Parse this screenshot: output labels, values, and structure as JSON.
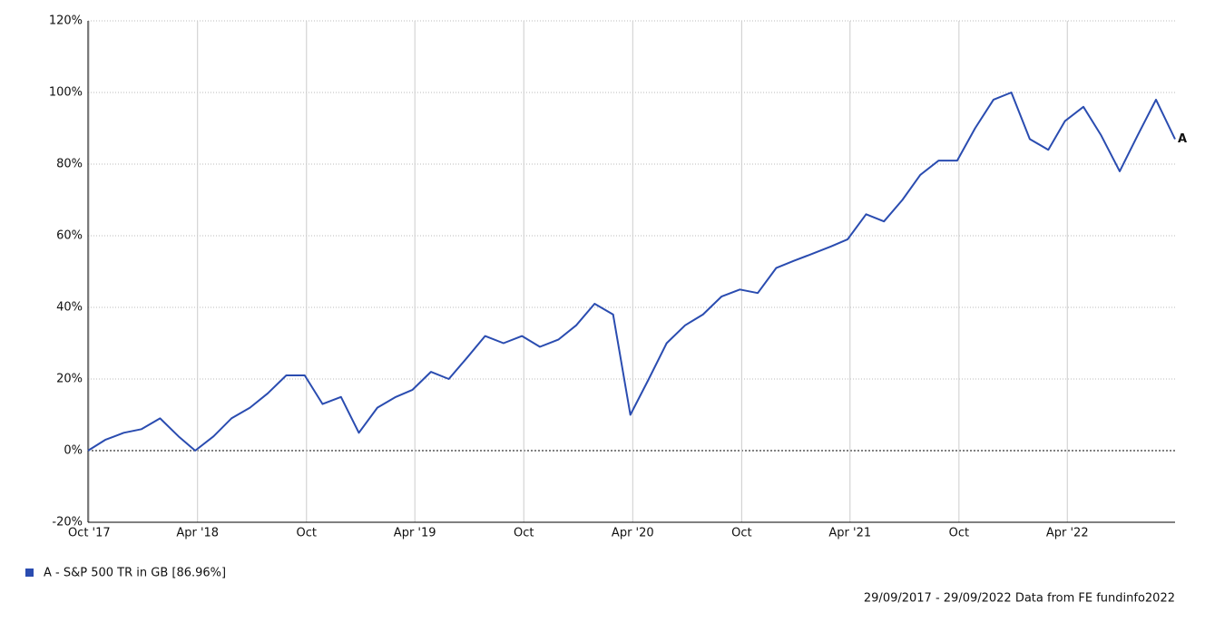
{
  "chart_data": {
    "type": "line",
    "x": [
      "2017-09-29",
      "2017-10-28",
      "2017-11-28",
      "2017-12-28",
      "2018-01-28",
      "2018-02-28",
      "2018-03-28",
      "2018-04-28",
      "2018-05-28",
      "2018-06-28",
      "2018-07-28",
      "2018-08-28",
      "2018-09-28",
      "2018-10-28",
      "2018-11-28",
      "2018-12-28",
      "2019-01-28",
      "2019-02-28",
      "2019-03-28",
      "2019-04-28",
      "2019-05-28",
      "2019-06-28",
      "2019-07-28",
      "2019-08-28",
      "2019-09-28",
      "2019-10-28",
      "2019-11-28",
      "2019-12-28",
      "2020-01-28",
      "2020-02-28",
      "2020-03-28",
      "2020-04-28",
      "2020-05-28",
      "2020-06-28",
      "2020-07-28",
      "2020-08-28",
      "2020-09-28",
      "2020-10-28",
      "2020-11-28",
      "2020-12-28",
      "2021-01-28",
      "2021-02-28",
      "2021-03-28",
      "2021-04-28",
      "2021-05-28",
      "2021-06-28",
      "2021-07-28",
      "2021-08-28",
      "2021-09-28",
      "2021-10-28",
      "2021-11-28",
      "2021-12-28",
      "2022-01-28",
      "2022-02-28",
      "2022-03-28",
      "2022-04-28",
      "2022-05-28",
      "2022-06-28",
      "2022-07-28",
      "2022-08-28",
      "2022-09-29"
    ],
    "series": [
      {
        "name": "A - S&P 500 TR in GB [86.96%]",
        "color": "#2a4cb0",
        "end_label": "A",
        "values": [
          0,
          3,
          5,
          6,
          9,
          4,
          0,
          4,
          9,
          12,
          16,
          21,
          21,
          13,
          15,
          5,
          12,
          15,
          17,
          22,
          20,
          26,
          32,
          30,
          32,
          29,
          31,
          35,
          41,
          38,
          10,
          20,
          30,
          35,
          38,
          43,
          45,
          44,
          51,
          53,
          55,
          57,
          59,
          66,
          64,
          70,
          77,
          81,
          81,
          90,
          98,
          100,
          87,
          84,
          92,
          96,
          88,
          78,
          88,
          98,
          86.96
        ]
      }
    ],
    "xlim": [
      "2017-09-29",
      "2022-09-29"
    ],
    "xticks": [
      {
        "value": "2017-10-01",
        "label": "Oct '17"
      },
      {
        "value": "2018-04-01",
        "label": "Apr '18"
      },
      {
        "value": "2018-10-01",
        "label": "Oct"
      },
      {
        "value": "2019-04-01",
        "label": "Apr '19"
      },
      {
        "value": "2019-10-01",
        "label": "Oct"
      },
      {
        "value": "2020-04-01",
        "label": "Apr '20"
      },
      {
        "value": "2020-10-01",
        "label": "Oct"
      },
      {
        "value": "2021-04-01",
        "label": "Apr '21"
      },
      {
        "value": "2021-10-01",
        "label": "Oct"
      },
      {
        "value": "2022-04-01",
        "label": "Apr '22"
      }
    ],
    "ylim": [
      -20,
      120
    ],
    "yticks": [
      {
        "value": -20,
        "label": "-20%"
      },
      {
        "value": 0,
        "label": "0%"
      },
      {
        "value": 20,
        "label": "20%"
      },
      {
        "value": 40,
        "label": "40%"
      },
      {
        "value": 60,
        "label": "60%"
      },
      {
        "value": 80,
        "label": "80%"
      },
      {
        "value": 100,
        "label": "100%"
      },
      {
        "value": 120,
        "label": "120%"
      }
    ],
    "grid": true,
    "footer": "29/09/2017 - 29/09/2022 Data from FE fundinfo2022"
  }
}
